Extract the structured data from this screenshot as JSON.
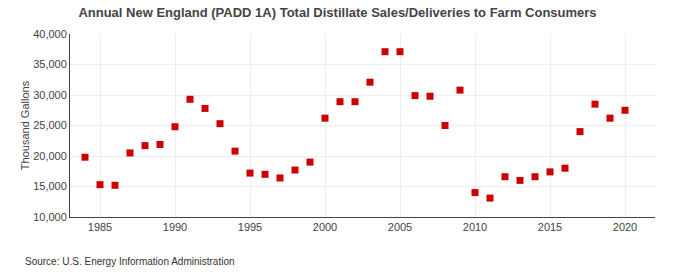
{
  "chart_data": {
    "type": "scatter",
    "title": "Annual New England (PADD 1A) Total Distillate Sales/Deliveries to Farm Consumers",
    "ylabel": "Thousand Gallons",
    "annotations": [
      "Source: U.S. Energy Information Administration"
    ],
    "x": [
      1984,
      1985,
      1986,
      1987,
      1988,
      1989,
      1990,
      1991,
      1992,
      1993,
      1994,
      1995,
      1996,
      1997,
      1998,
      1999,
      2000,
      2001,
      2002,
      2003,
      2004,
      2005,
      2006,
      2007,
      2008,
      2009,
      2010,
      2011,
      2012,
      2013,
      2014,
      2015,
      2016,
      2017,
      2018,
      2019,
      2020
    ],
    "values": [
      19800,
      15300,
      15200,
      20500,
      21700,
      21900,
      24800,
      29300,
      27800,
      25300,
      20800,
      17200,
      17000,
      16400,
      17700,
      19000,
      26200,
      28900,
      28900,
      32100,
      37100,
      37100,
      29900,
      29800,
      25000,
      30800,
      14000,
      13100,
      16600,
      16000,
      16600,
      17400,
      18000,
      24000,
      28500,
      26200,
      27500
    ],
    "color": "#cc0000",
    "marker": "square",
    "xlim": [
      1983,
      2022
    ],
    "xticks": [
      1985,
      1990,
      1995,
      2000,
      2005,
      2010,
      2015,
      2020
    ],
    "ylim": [
      10000,
      40000
    ],
    "yticks": [
      {
        "value": 10000,
        "label": "10,000"
      },
      {
        "value": 15000,
        "label": "15,000"
      },
      {
        "value": 20000,
        "label": "20,000"
      },
      {
        "value": 25000,
        "label": "25,000"
      },
      {
        "value": 30000,
        "label": "30,000"
      },
      {
        "value": 35000,
        "label": "35,000"
      },
      {
        "value": 40000,
        "label": "40,000"
      }
    ],
    "grid": true
  }
}
